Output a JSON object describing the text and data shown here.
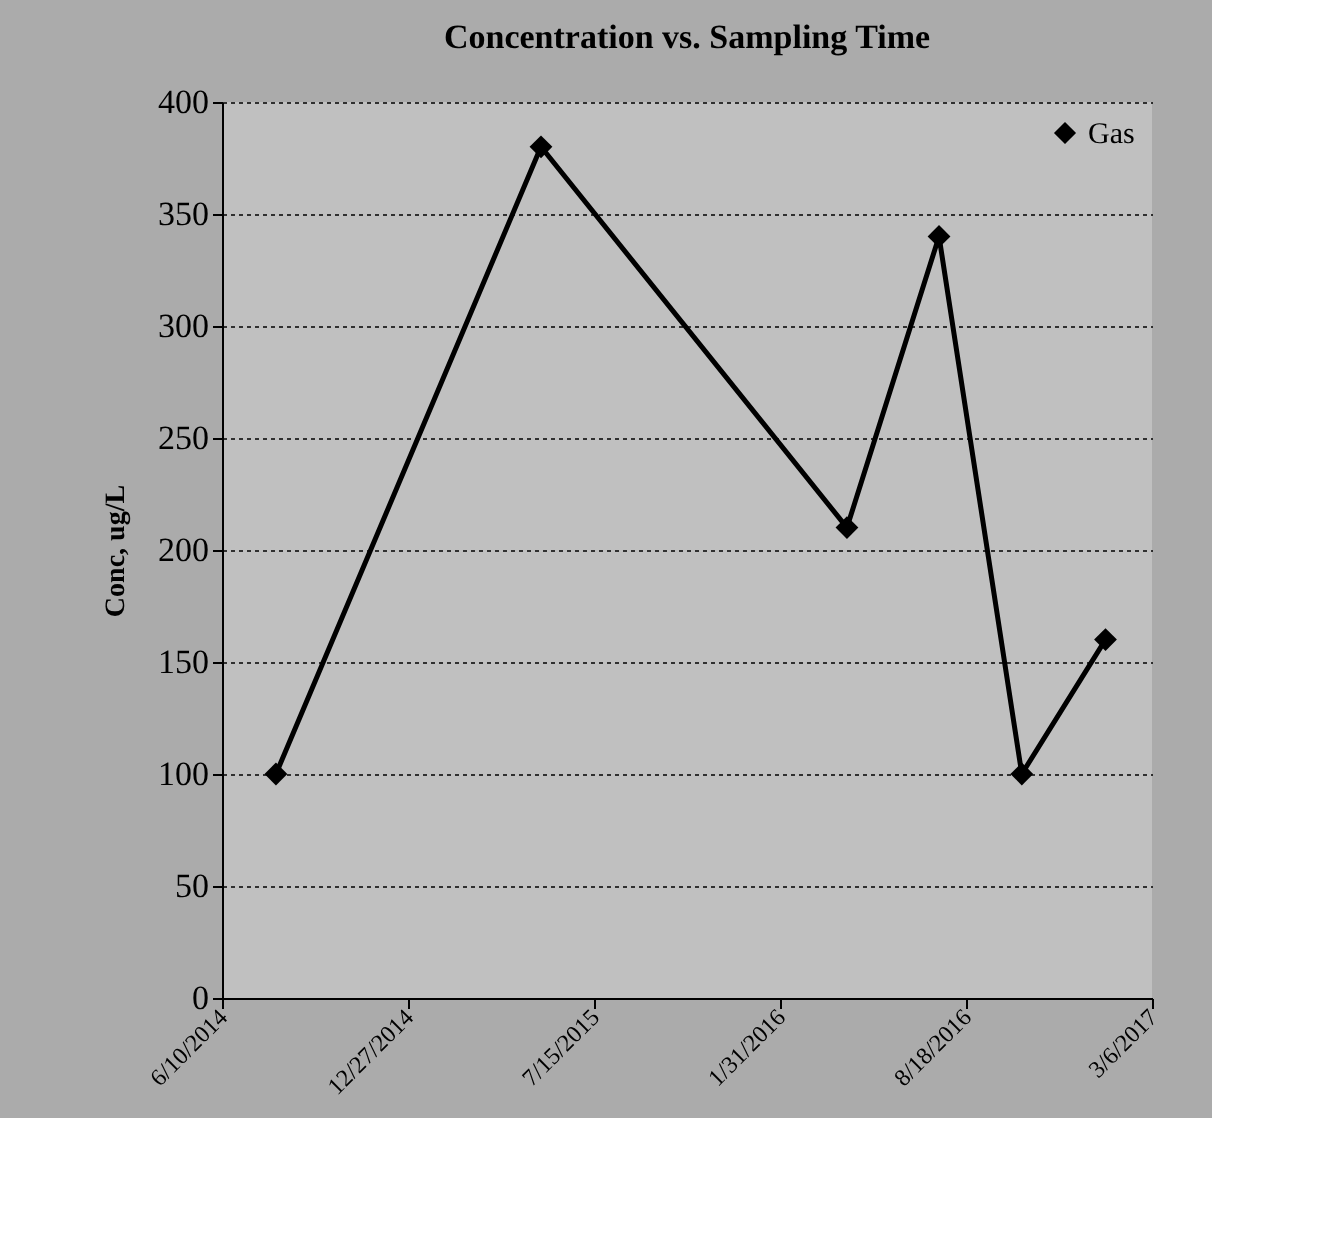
{
  "chart_data": {
    "type": "line",
    "title": "Concentration vs. Sampling Time",
    "ylabel": "Conc, ug/L",
    "x": [
      "2014-08-07",
      "2015-05-19",
      "2016-04-12",
      "2016-07-20",
      "2016-10-17",
      "2017-01-15"
    ],
    "series": [
      {
        "name": "Gas",
        "color": "#000000",
        "values": [
          100,
          380,
          210,
          340,
          100,
          160
        ]
      }
    ],
    "xlim": [
      "2014-06-10",
      "2017-03-06"
    ],
    "xticks": [
      {
        "value": "2014-06-10",
        "label": "6/10/2014"
      },
      {
        "value": "2014-12-27",
        "label": "12/27/2014"
      },
      {
        "value": "2015-07-15",
        "label": "7/15/2015"
      },
      {
        "value": "2016-01-31",
        "label": "1/31/2016"
      },
      {
        "value": "2016-08-18",
        "label": "8/18/2016"
      },
      {
        "value": "2017-03-06",
        "label": "3/6/2017"
      }
    ],
    "ylim": [
      0,
      400
    ],
    "yticks": [
      0,
      50,
      100,
      150,
      200,
      250,
      300,
      350,
      400
    ],
    "grid": "y",
    "legend": "top right",
    "marker": "diamond",
    "line_style": "solid"
  }
}
